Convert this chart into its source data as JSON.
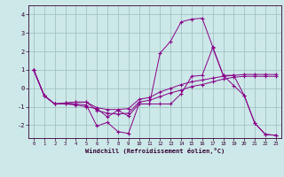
{
  "xlabel": "Windchill (Refroidissement éolien,°C)",
  "background_color": "#cce8e8",
  "grid_color": "#9bbcbc",
  "line_color": "#880088",
  "xlim": [
    -0.5,
    23.5
  ],
  "ylim": [
    -2.7,
    4.5
  ],
  "yticks": [
    -2,
    -1,
    0,
    1,
    2,
    3,
    4
  ],
  "xticks": [
    0,
    1,
    2,
    3,
    4,
    5,
    6,
    7,
    8,
    9,
    10,
    11,
    12,
    13,
    14,
    15,
    16,
    17,
    18,
    19,
    20,
    21,
    22,
    23
  ],
  "series": [
    [
      1.0,
      -0.4,
      -0.85,
      -0.85,
      -0.85,
      -0.9,
      -2.05,
      -1.85,
      -2.35,
      -2.45,
      -0.85,
      -0.85,
      -0.85,
      -0.85,
      -0.3,
      0.65,
      0.7,
      2.2,
      0.7,
      0.15,
      -0.4,
      -1.9,
      -2.5,
      -2.55
    ],
    [
      1.0,
      -0.4,
      -0.85,
      -0.8,
      -0.75,
      -0.75,
      -1.2,
      -1.35,
      -1.4,
      -1.35,
      -0.75,
      -0.65,
      -0.45,
      -0.25,
      -0.1,
      0.1,
      0.2,
      0.35,
      0.5,
      0.6,
      0.65,
      0.65,
      0.65,
      0.65
    ],
    [
      1.0,
      -0.4,
      -0.85,
      -0.8,
      -0.75,
      -0.75,
      -1.05,
      -1.15,
      -1.15,
      -1.1,
      -0.6,
      -0.5,
      -0.2,
      0.0,
      0.2,
      0.35,
      0.45,
      0.55,
      0.65,
      0.7,
      0.75,
      0.75,
      0.75,
      0.75
    ],
    [
      1.0,
      -0.4,
      -0.85,
      -0.85,
      -0.9,
      -1.0,
      -1.1,
      -1.55,
      -1.2,
      -1.5,
      -0.85,
      -0.85,
      1.9,
      2.55,
      3.6,
      3.75,
      3.8,
      2.25,
      0.7,
      0.7,
      -0.4,
      -1.9,
      -2.5,
      -2.55
    ]
  ]
}
